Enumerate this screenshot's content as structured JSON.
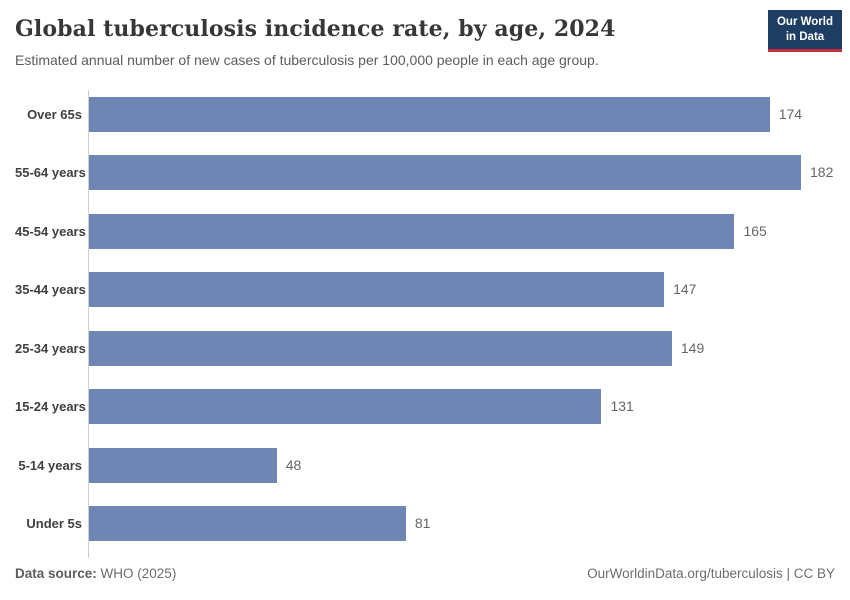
{
  "header": {
    "title": "Global tuberculosis incidence rate, by age, 2024",
    "subtitle": "Estimated annual number of new cases of tuberculosis per 100,000 people in each age group.",
    "logo": {
      "line1": "Our World",
      "line2": "in Data"
    }
  },
  "chart_data": {
    "type": "bar",
    "orientation": "horizontal",
    "title": "Global tuberculosis incidence rate, by age, 2024",
    "xlabel": "",
    "ylabel": "",
    "categories": [
      "Over 65s",
      "55-64 years",
      "45-54 years",
      "35-44 years",
      "25-34 years",
      "15-24 years",
      "5-14 years",
      "Under 5s"
    ],
    "values": [
      174,
      182,
      165,
      147,
      149,
      131,
      48,
      81
    ],
    "xlim": [
      0,
      182
    ],
    "grid": false,
    "legend": false,
    "value_labels_shown": true
  },
  "footer": {
    "source_label": "Data source:",
    "source_value": "WHO (2025)",
    "right_text": "OurWorldinData.org/tuberculosis | CC BY"
  },
  "colors": {
    "bar": "#6e86b3",
    "axis": "#cfcfcf",
    "logo_bg": "#1d3d63",
    "logo_underline": "#c5303e",
    "title_text": "#373737",
    "subtitle_text": "#5c5c5c",
    "value_text": "#666666",
    "category_text": "#404040"
  }
}
